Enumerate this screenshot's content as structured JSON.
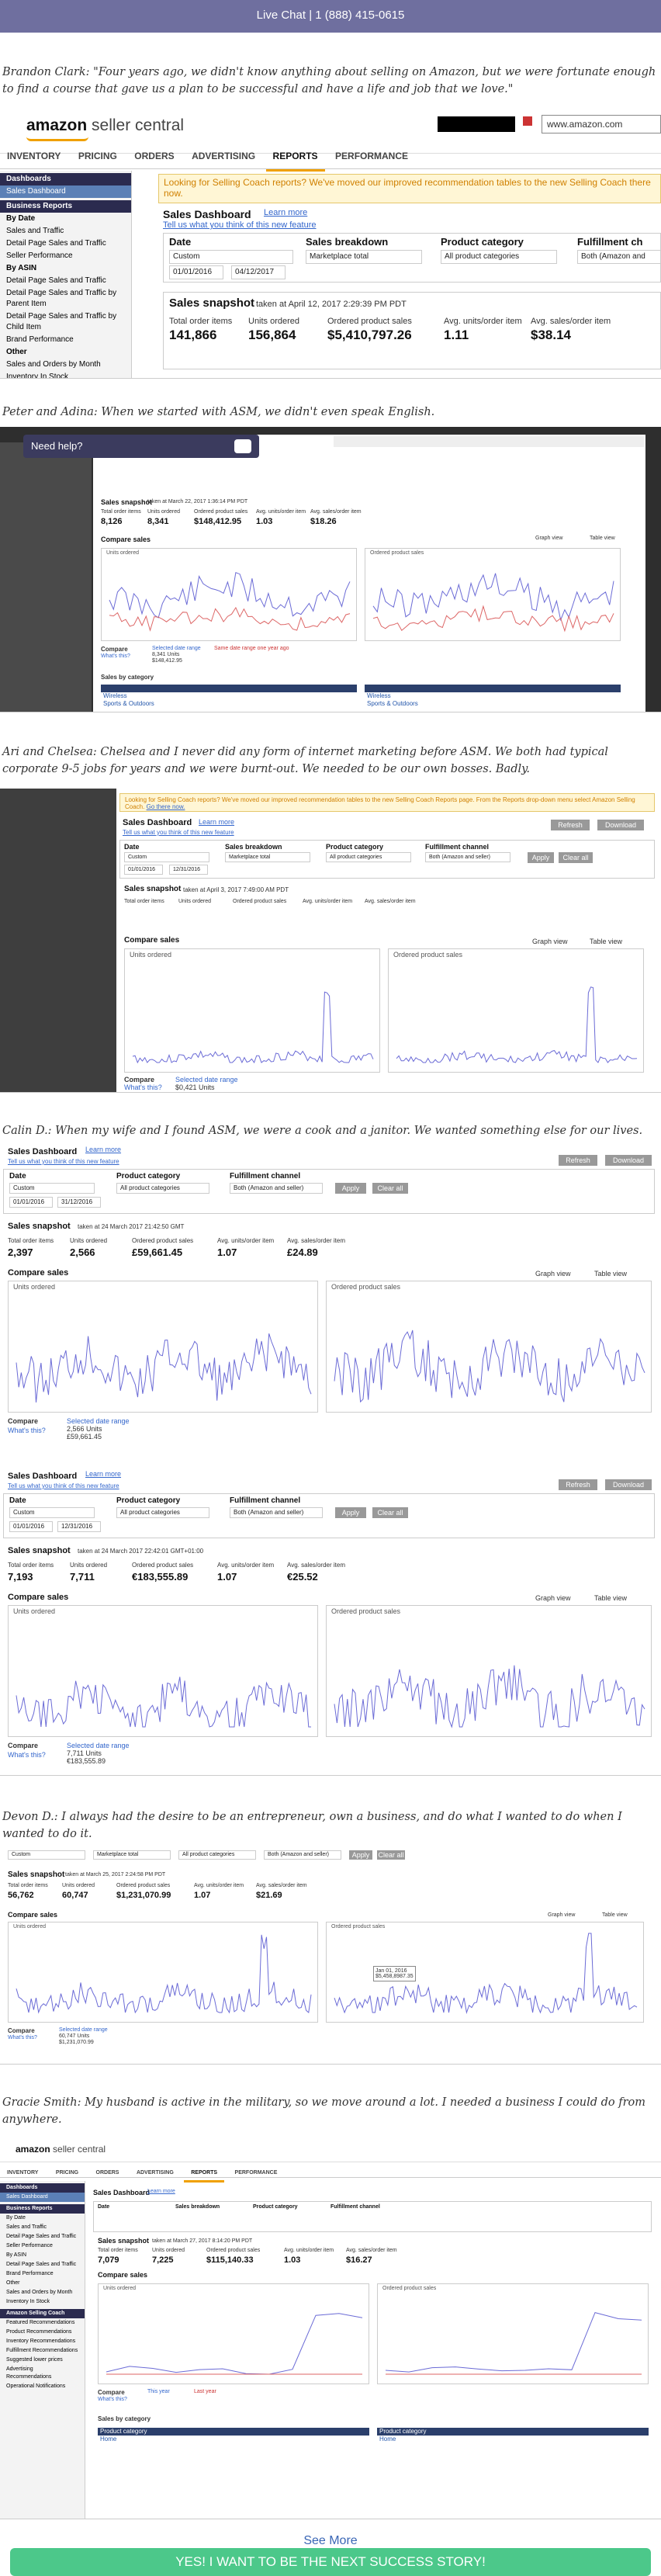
{
  "topbar": {
    "text": "Live Chat | 1 (888) 415-0615"
  },
  "quotes": [
    "Brandon Clark: \"Four years ago, we didn't know anything about selling on Amazon, but we were fortunate enough to find a course that gave us a plan to be successful and have a life and job that we love.\"",
    "Peter and Adina: When we started with ASM, we didn't even speak English.",
    "Ari and Chelsea: Chelsea and I never did any form of internet marketing before ASM. We both had typical corporate 9-5 jobs for years and we were burnt-out. We needed to be our own bosses. Badly.",
    "Calin D.: When my wife and I found ASM, we were a cook and a janitor. We wanted something else for our lives.",
    "Devon D.: I always had the desire to be an entrepreneur, own a business, and do what I wanted to do when I wanted to do it.",
    "Gracie Smith: My husband is active in the military, so we move around a lot. I needed a business I could do from anywhere."
  ],
  "shot1": {
    "logo": "amazon",
    "logo_sub": "seller central",
    "url_box": "www.amazon.com",
    "nav": [
      "INVENTORY",
      "PRICING",
      "ORDERS",
      "ADVERTISING",
      "REPORTS",
      "PERFORMANCE"
    ],
    "sidebar": [
      {
        "t": "Dashboards",
        "k": "hd"
      },
      {
        "t": "Sales Dashboard",
        "k": "sel"
      },
      {
        "t": "Business Reports",
        "k": "hd"
      },
      {
        "t": "By Date",
        "k": "b"
      },
      {
        "t": "Sales and Traffic",
        "k": ""
      },
      {
        "t": "Detail Page Sales and Traffic",
        "k": ""
      },
      {
        "t": "Seller Performance",
        "k": ""
      },
      {
        "t": "By ASIN",
        "k": "b"
      },
      {
        "t": "Detail Page Sales and Traffic",
        "k": ""
      },
      {
        "t": "Detail Page Sales and Traffic by Parent Item",
        "k": ""
      },
      {
        "t": "Detail Page Sales and Traffic by Child Item",
        "k": ""
      },
      {
        "t": "Brand Performance",
        "k": ""
      },
      {
        "t": "Other",
        "k": "b"
      },
      {
        "t": "Sales and Orders by Month",
        "k": ""
      },
      {
        "t": "Inventory In Stock",
        "k": ""
      }
    ],
    "banner": "Looking for Selling Coach reports? We've moved our improved recommendation tables to the new Selling Coach there now.",
    "title": "Sales Dashboard",
    "learn_more": "Learn more",
    "feedback": "Tell us what you think of this new feature",
    "filters": {
      "date_label": "Date",
      "date_value": "Custom",
      "from": "01/01/2016",
      "to": "04/12/2017",
      "breakdown_label": "Sales breakdown",
      "breakdown_value": "Marketplace total",
      "category_label": "Product category",
      "category_value": "All product categories",
      "channel_label": "Fulfillment ch",
      "channel_value": "Both (Amazon and"
    },
    "snapshot_title": "Sales snapshot",
    "snapshot_time": "taken at April 12, 2017 2:29:39 PM PDT",
    "metrics": [
      {
        "label": "Total order items",
        "value": "141,866"
      },
      {
        "label": "Units ordered",
        "value": "156,864"
      },
      {
        "label": "Ordered product sales",
        "value": "$5,410,797.26"
      },
      {
        "label": "Avg. units/order item",
        "value": "1.11"
      },
      {
        "label": "Avg. sales/order item",
        "value": "$38.14"
      }
    ]
  },
  "shot2": {
    "need_help": "Need help?",
    "snapshot_title": "Sales snapshot",
    "snapshot_time": "taken at March 22, 2017 1:36:14 PM PDT",
    "metrics": [
      {
        "label": "Total order items",
        "value": "8,126"
      },
      {
        "label": "Units ordered",
        "value": "8,341"
      },
      {
        "label": "Ordered product sales",
        "value": "$148,412.95"
      },
      {
        "label": "Avg. units/order item",
        "value": "1.03"
      },
      {
        "label": "Avg. sales/order item",
        "value": "$18.26"
      }
    ],
    "compare_title": "Compare sales",
    "units_label": "Units ordered",
    "sales_label": "Ordered product sales",
    "compare_label": "Compare",
    "whats_this": "What's this?",
    "selected_range": "Selected date range",
    "selected_units": "8,341 Units",
    "selected_sales": "$148,412.95",
    "same_date": "Same date range one year ago",
    "by_category": "Sales by category",
    "cat_rows": [
      "Wireless",
      "Sports & Outdoors"
    ],
    "graph_view": "Graph view",
    "table_view": "Table view"
  },
  "shot3": {
    "banner": "Looking for Selling Coach reports? We've moved our improved recommendation tables to the new Selling Coach Reports page. From the Reports drop-down menu select Amazon Selling Coach.",
    "go_there": "Go there now.",
    "title": "Sales Dashboard",
    "learn_more": "Learn more",
    "refresh": "Refresh",
    "download": "Download",
    "feedback": "Tell us what you think of this new feature",
    "date_label": "Date",
    "date_value": "Custom",
    "from": "01/01/2016",
    "to": "12/31/2016",
    "breakdown_label": "Sales breakdown",
    "breakdown_value": "Marketplace total",
    "category_label": "Product category",
    "category_value": "All product categories",
    "channel_label": "Fulfillment channel",
    "channel_value": "Both (Amazon and seller)",
    "apply": "Apply",
    "clear": "Clear all",
    "snapshot_title": "Sales snapshot",
    "snapshot_time": "taken at April 3, 2017 7:49:00 AM PDT",
    "metric_labels": [
      "Total order items",
      "Units ordered",
      "Ordered product sales",
      "Avg. units/order item",
      "Avg. sales/order item"
    ],
    "compare_title": "Compare sales",
    "units_label": "Units ordered",
    "sales_label": "Ordered product sales",
    "graph_view": "Graph view",
    "table_view": "Table view",
    "compare_label": "Compare",
    "whats_this": "What's this?",
    "selected_range": "Selected date range",
    "selected_sales": "$0,421 Units"
  },
  "shot4": {
    "title": "Sales Dashboard",
    "learn_more": "Learn more",
    "feedback": "Tell us what you think of this new feature",
    "refresh": "Refresh",
    "download": "Download",
    "date_label": "Date",
    "date_value": "Custom",
    "from": "01/01/2016",
    "to": "31/12/2016",
    "category_label": "Product category",
    "category_value": "All product categories",
    "channel_label": "Fulfillment channel",
    "channel_value": "Both (Amazon and seller)",
    "apply": "Apply",
    "clear": "Clear all",
    "snapshot_title": "Sales snapshot",
    "snapshot_time": "taken at 24 March 2017 21:42:50 GMT",
    "metrics": [
      {
        "label": "Total order items",
        "value": "2,397"
      },
      {
        "label": "Units ordered",
        "value": "2,566"
      },
      {
        "label": "Ordered product sales",
        "value": "£59,661.45"
      },
      {
        "label": "Avg. units/order item",
        "value": "1.07"
      },
      {
        "label": "Avg. sales/order item",
        "value": "£24.89"
      }
    ],
    "compare_title": "Compare sales",
    "units_label": "Units ordered",
    "sales_label": "Ordered product sales",
    "graph_view": "Graph view",
    "table_view": "Table view",
    "compare_label": "Compare",
    "whats_this": "What's this?",
    "selected_range": "Selected date range",
    "selected_units": "2,566 Units",
    "selected_sales": "£59,661.45"
  },
  "shot5": {
    "title": "Sales Dashboard",
    "learn_more": "Learn more",
    "feedback": "Tell us what you think of this new feature",
    "refresh": "Refresh",
    "download": "Download",
    "date_label": "Date",
    "date_value": "Custom",
    "from": "01/01/2016",
    "to": "12/31/2016",
    "category_label": "Product category",
    "category_value": "All product categories",
    "channel_label": "Fulfillment channel",
    "channel_value": "Both (Amazon and seller)",
    "apply": "Apply",
    "clear": "Clear all",
    "snapshot_title": "Sales snapshot",
    "snapshot_time": "taken at 24 March 2017 22:42:01 GMT+01:00",
    "metrics": [
      {
        "label": "Total order items",
        "value": "7,193"
      },
      {
        "label": "Units ordered",
        "value": "7,711"
      },
      {
        "label": "Ordered product sales",
        "value": "€183,555.89"
      },
      {
        "label": "Avg. units/order item",
        "value": "1.07"
      },
      {
        "label": "Avg. sales/order item",
        "value": "€25.52"
      }
    ],
    "compare_title": "Compare sales",
    "units_label": "Units ordered",
    "sales_label": "Ordered product sales",
    "graph_view": "Graph view",
    "table_view": "Table view",
    "compare_label": "Compare",
    "whats_this": "What's this?",
    "selected_range": "Selected date range",
    "selected_units": "7,711 Units",
    "selected_sales": "€183,555.89"
  },
  "shot6": {
    "date_value": "Custom",
    "breakdown_value": "Marketplace total",
    "category_value": "All product categories",
    "channel_value": "Both (Amazon and seller)",
    "apply": "Apply",
    "clear": "Clear all",
    "snapshot_title": "Sales snapshot",
    "snapshot_time": "taken at March 25, 2017 2:24:58 PM PDT",
    "metrics": [
      {
        "label": "Total order items",
        "value": "56,762"
      },
      {
        "label": "Units ordered",
        "value": "60,747"
      },
      {
        "label": "Ordered product sales",
        "value": "$1,231,070.99"
      },
      {
        "label": "Avg. units/order item",
        "value": "1.07"
      },
      {
        "label": "Avg. sales/order item",
        "value": "$21.69"
      }
    ],
    "compare_title": "Compare sales",
    "units_label": "Units ordered",
    "sales_label": "Ordered product sales",
    "graph_view": "Graph view",
    "table_view": "Table view",
    "compare_label": "Compare",
    "whats_this": "What's this?",
    "selected_range": "Selected date range",
    "selected_units": "60,747 Units",
    "selected_sales": "$1,231,070.99",
    "tooltip_date": "Jan 01, 2016",
    "tooltip_value": "$5,458,8987.35"
  },
  "shot7": {
    "logo": "amazon",
    "logo_sub": "seller central",
    "nav": [
      "INVENTORY",
      "PRICING",
      "ORDERS",
      "ADVERTISING",
      "REPORTS",
      "PERFORMANCE"
    ],
    "title": "Sales Dashboard",
    "learn_more": "Learn more",
    "date_label": "Date",
    "breakdown_label": "Sales breakdown",
    "category_label": "Product category",
    "channel_label": "Fulfillment channel",
    "snapshot_title": "Sales snapshot",
    "snapshot_time": "taken at March 27, 2017 8:14:20 PM PDT",
    "metrics": [
      {
        "label": "Total order items",
        "value": "7,079"
      },
      {
        "label": "Units ordered",
        "value": "7,225"
      },
      {
        "label": "Ordered product sales",
        "value": "$115,140.33"
      },
      {
        "label": "Avg. units/order item",
        "value": "1.03"
      },
      {
        "label": "Avg. sales/order item",
        "value": "$16.27"
      }
    ],
    "compare_title": "Compare sales",
    "units_label": "Units ordered",
    "sales_label": "Ordered product sales",
    "compare_label": "Compare",
    "whats_this": "What's this?",
    "this_year": "This year",
    "last_year": "Last year",
    "by_category": "Sales by category",
    "cat_header": "Product category",
    "cat_rows": [
      "Home"
    ],
    "sidebar": [
      "Dashboards",
      "Sales Dashboard",
      "Business Reports",
      "By Date",
      "Sales and Traffic",
      "Detail Page Sales and Traffic",
      "Seller Performance",
      "By ASIN",
      "Detail Page Sales and Traffic",
      "Brand Performance",
      "Other",
      "Sales and Orders by Month",
      "Inventory In Stock",
      "Amazon Selling Coach",
      "Featured Recommendations",
      "Product Recommendations",
      "Inventory Recommendations",
      "Fulfillment Recommendations",
      "Suggested lower prices",
      "Advertising Recommendations",
      "Operational Notifications"
    ]
  },
  "see_more": "See More",
  "cta": "YES! I WANT TO BE THE NEXT SUCCESS STORY!"
}
